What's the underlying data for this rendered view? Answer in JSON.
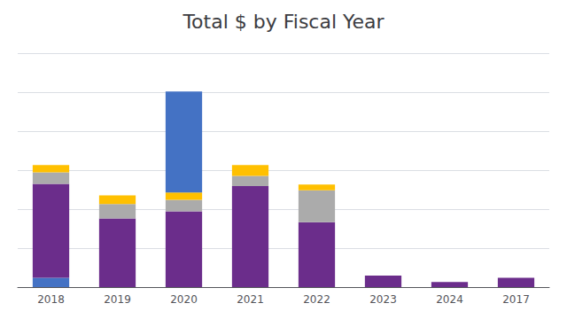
{
  "chart_data": {
    "type": "bar",
    "title": "Total $ by Fiscal Year",
    "categories": [
      "2018",
      "2019",
      "2020",
      "2021",
      "2022",
      "2023",
      "2024",
      "2017"
    ],
    "series": [
      {
        "color": "#4472C4",
        "values": [
          13,
          0,
          0,
          0,
          0,
          0,
          0,
          0
        ]
      },
      {
        "color": "#6B2D8B",
        "values": [
          130,
          95,
          105,
          140,
          90,
          16,
          7,
          13
        ]
      },
      {
        "color": "#ABABAB",
        "values": [
          16,
          20,
          16,
          14,
          44,
          0,
          0,
          0
        ]
      },
      {
        "color": "#FFC000",
        "values": [
          10,
          12,
          10,
          15,
          8,
          0,
          0,
          0
        ]
      },
      {
        "color": "#4472C4",
        "values": [
          0,
          0,
          140,
          0,
          0,
          0,
          0,
          0
        ]
      }
    ],
    "stacked": true,
    "ylim": [
      0,
      324
    ],
    "yticks": [
      0,
      54,
      108,
      162,
      216,
      270,
      324
    ],
    "grid": true,
    "tick_labels": "x"
  }
}
